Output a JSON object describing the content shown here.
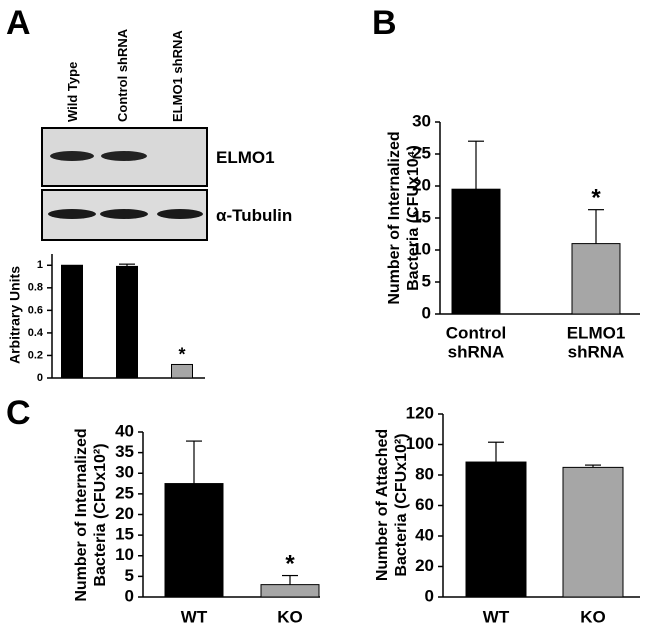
{
  "blot": {
    "lanes": [
      "Wild Type",
      "Control shRNA",
      "ELMO1 shRNA"
    ],
    "bands": [
      "ELMO1",
      "α-Tubulin"
    ]
  },
  "chart_data": [
    {
      "type": "bar",
      "panel_label": "A",
      "ylabel": [
        "Arbitrary Units"
      ],
      "categories": [
        null,
        null,
        null
      ],
      "values": [
        1,
        0.99,
        0.12
      ],
      "errors": [
        null,
        0.02,
        null
      ],
      "colors": [
        "#000000",
        "#000000",
        "#a6a6a6"
      ],
      "ylim": [
        0,
        1.1
      ],
      "yticks": [
        0,
        0.2,
        0.4,
        0.6,
        0.8,
        1
      ],
      "annotations": [
        {
          "text": "*",
          "index": 2
        }
      ]
    },
    {
      "type": "bar",
      "panel_label": "B",
      "ylabel": [
        "Number of Internalized",
        "Bacteria (CFUx10⁴)"
      ],
      "categories": [
        [
          "Control",
          "shRNA"
        ],
        [
          "ELMO1",
          "shRNA"
        ]
      ],
      "values": [
        19.5,
        11
      ],
      "errors": [
        7.5,
        5.3
      ],
      "colors": [
        "#000000",
        "#a6a6a6"
      ],
      "ylim": [
        0,
        30
      ],
      "yticks": [
        0,
        5,
        10,
        15,
        20,
        25,
        30
      ],
      "annotations": [
        {
          "text": "*",
          "index": 1
        }
      ]
    },
    {
      "type": "bar",
      "panel_label": "C",
      "ylabel": [
        "Number of Internalized",
        "Bacteria (CFUx10²)"
      ],
      "categories": [
        [
          "WT"
        ],
        [
          "KO"
        ]
      ],
      "values": [
        27.5,
        3
      ],
      "errors": [
        10.3,
        2.2
      ],
      "colors": [
        "#000000",
        "#a6a6a6"
      ],
      "ylim": [
        0,
        40
      ],
      "yticks": [
        0,
        5,
        10,
        15,
        20,
        25,
        30,
        35,
        40
      ],
      "annotations": [
        {
          "text": "*",
          "index": 1
        }
      ]
    },
    {
      "type": "bar",
      "ylabel": [
        "Number of Attached",
        "Bacteria (CFUx10²)"
      ],
      "categories": [
        [
          "WT"
        ],
        [
          "KO"
        ]
      ],
      "values": [
        88.5,
        85
      ],
      "errors": [
        13,
        1.5
      ],
      "colors": [
        "#000000",
        "#a6a6a6"
      ],
      "ylim": [
        0,
        120
      ],
      "yticks": [
        0,
        20,
        40,
        60,
        80,
        100,
        120
      ]
    }
  ]
}
